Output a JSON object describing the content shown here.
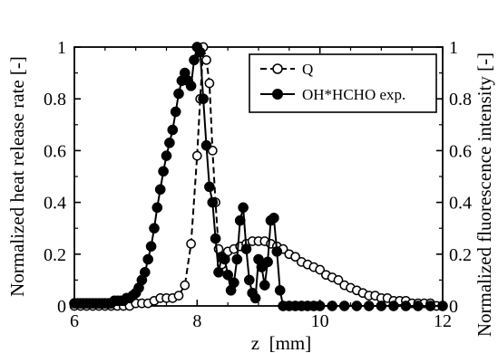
{
  "chart_data": {
    "type": "line",
    "xlabel": "z  [mm]",
    "ylabel_left": "Normalized heat release rate [-]",
    "ylabel_right": "Normalized fluorescence intensity [-]",
    "xlim": [
      6,
      12
    ],
    "ylim": [
      0,
      1
    ],
    "xticks": [
      6,
      8,
      10,
      12
    ],
    "xtick_labels": [
      "6",
      "8",
      "10",
      "12"
    ],
    "yticks": [
      0,
      0.2,
      0.4,
      0.6,
      0.8,
      1
    ],
    "ytick_labels": [
      "0",
      "0.2",
      "0.4",
      "0.6",
      "0.8",
      "1"
    ],
    "grid": false,
    "legend_position": "top-right",
    "series": [
      {
        "name": "Q",
        "style": "dashed-open-circles",
        "color": "#000000",
        "x": [
          6.0,
          6.1,
          6.2,
          6.3,
          6.4,
          6.5,
          6.6,
          6.7,
          6.8,
          6.9,
          7.0,
          7.1,
          7.2,
          7.3,
          7.4,
          7.5,
          7.6,
          7.7,
          7.8,
          7.9,
          8.0,
          8.05,
          8.1,
          8.15,
          8.2,
          8.25,
          8.3,
          8.35,
          8.4,
          8.45,
          8.5,
          8.6,
          8.7,
          8.8,
          8.9,
          9.0,
          9.1,
          9.2,
          9.3,
          9.4,
          9.5,
          9.6,
          9.7,
          9.8,
          9.9,
          10.0,
          10.1,
          10.2,
          10.3,
          10.4,
          10.5,
          10.6,
          10.7,
          10.8,
          10.9,
          11.0,
          11.1,
          11.2,
          11.3,
          11.4,
          11.5,
          11.6,
          11.7,
          11.8,
          11.9,
          12.0
        ],
        "y": [
          0.0,
          0.0,
          0.0,
          0.0,
          0.0,
          0.0,
          0.0,
          0.0,
          0.0,
          0.0,
          0.01,
          0.01,
          0.01,
          0.02,
          0.03,
          0.03,
          0.03,
          0.04,
          0.08,
          0.24,
          0.58,
          0.8,
          1.0,
          0.95,
          0.86,
          0.6,
          0.4,
          0.22,
          0.16,
          0.19,
          0.21,
          0.22,
          0.23,
          0.24,
          0.25,
          0.25,
          0.25,
          0.24,
          0.23,
          0.22,
          0.2,
          0.19,
          0.17,
          0.16,
          0.15,
          0.14,
          0.12,
          0.11,
          0.1,
          0.08,
          0.07,
          0.06,
          0.05,
          0.04,
          0.04,
          0.03,
          0.03,
          0.02,
          0.02,
          0.02,
          0.01,
          0.01,
          0.01,
          0.01,
          0.0,
          0.0
        ]
      },
      {
        "name": "OH*HCHO exp.",
        "style": "solid-filled-circles",
        "color": "#000000",
        "x": [
          6.0,
          6.05,
          6.1,
          6.15,
          6.2,
          6.25,
          6.3,
          6.35,
          6.4,
          6.45,
          6.5,
          6.55,
          6.6,
          6.65,
          6.7,
          6.75,
          6.8,
          6.85,
          6.9,
          6.95,
          7.0,
          7.05,
          7.1,
          7.15,
          7.2,
          7.25,
          7.3,
          7.35,
          7.4,
          7.45,
          7.5,
          7.55,
          7.6,
          7.65,
          7.7,
          7.75,
          7.8,
          7.85,
          7.9,
          7.95,
          8.0,
          8.05,
          8.1,
          8.15,
          8.2,
          8.25,
          8.3,
          8.35,
          8.4,
          8.45,
          8.5,
          8.55,
          8.6,
          8.65,
          8.7,
          8.75,
          8.8,
          8.85,
          8.9,
          8.95,
          9.0,
          9.05,
          9.1,
          9.15,
          9.2,
          9.25,
          9.3,
          9.35,
          9.4,
          9.5,
          9.6,
          9.7,
          9.8,
          9.9,
          10.0,
          10.2,
          10.4,
          10.6,
          10.8,
          11.0,
          11.2,
          11.4,
          11.6,
          11.8,
          12.0
        ],
        "y": [
          0.01,
          0.01,
          0.01,
          0.01,
          0.01,
          0.01,
          0.01,
          0.01,
          0.01,
          0.01,
          0.01,
          0.01,
          0.01,
          0.02,
          0.02,
          0.02,
          0.02,
          0.03,
          0.03,
          0.04,
          0.05,
          0.07,
          0.1,
          0.13,
          0.18,
          0.23,
          0.3,
          0.38,
          0.45,
          0.52,
          0.58,
          0.63,
          0.68,
          0.75,
          0.82,
          0.87,
          0.9,
          0.87,
          0.85,
          0.95,
          1.0,
          0.98,
          0.8,
          0.62,
          0.46,
          0.4,
          0.26,
          0.13,
          0.19,
          0.18,
          0.12,
          0.06,
          0.09,
          0.18,
          0.33,
          0.38,
          0.22,
          0.1,
          0.05,
          0.03,
          0.18,
          0.15,
          0.08,
          0.17,
          0.33,
          0.34,
          0.21,
          0.06,
          0.0,
          0.0,
          0.0,
          0.0,
          0.0,
          0.0,
          0.0,
          0.0,
          0.0,
          0.0,
          0.0,
          0.0,
          0.0,
          0.0,
          0.0,
          0.0,
          0.0
        ]
      }
    ]
  }
}
